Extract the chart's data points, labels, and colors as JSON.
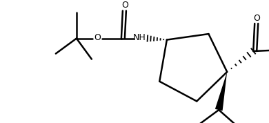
{
  "bg_color": "#ffffff",
  "line_color": "#000000",
  "line_width": 1.8,
  "fig_width": 3.9,
  "fig_height": 1.78,
  "dpi": 100,
  "xlim": [
    0,
    390
  ],
  "ylim": [
    0,
    178
  ]
}
